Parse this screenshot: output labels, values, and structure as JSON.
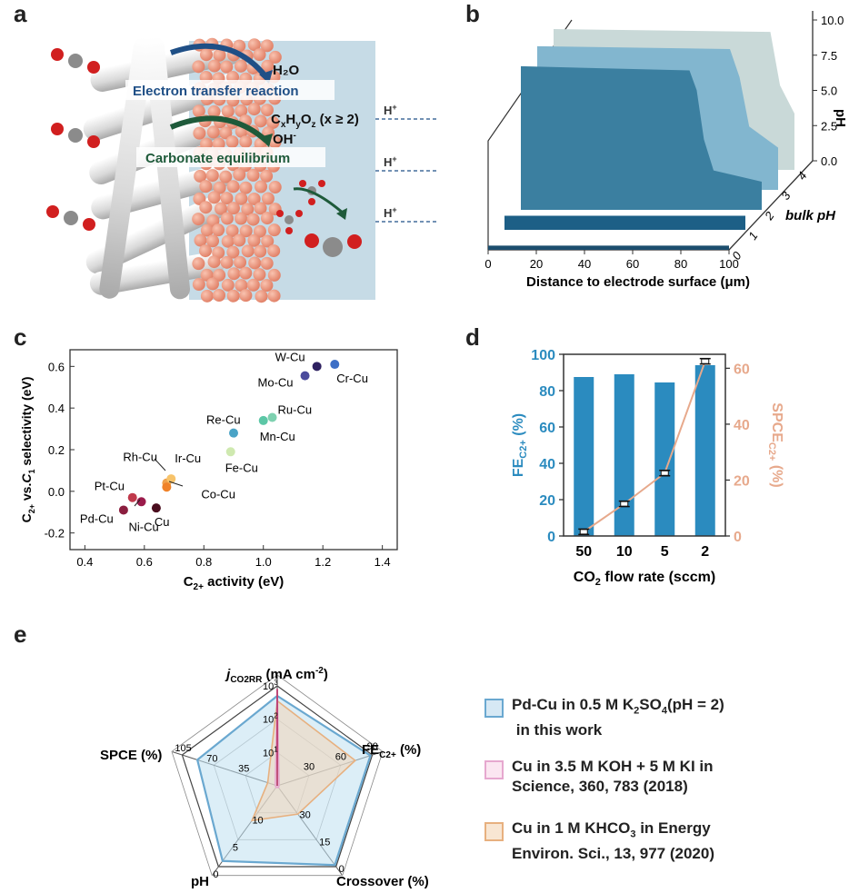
{
  "panels": {
    "a": "a",
    "b": "b",
    "c": "c",
    "d": "d",
    "e": "e"
  },
  "panel_a": {
    "h2o": "H₂O",
    "electron_transfer": "Electron transfer reaction",
    "product_prefix": "C",
    "product_x": "x",
    "product_h": "H",
    "product_y": "y",
    "product_o": "O",
    "product_z": "z",
    "product_suffix": " (x ≥ 2)",
    "oh": "OH",
    "oh_sup": "-",
    "carbonate": "Carbonate equilibrium",
    "proton": "H",
    "proton_sup": "+"
  },
  "chart_data": [
    {
      "id": "b",
      "type": "area",
      "title": "",
      "xlabel": "Distance to electrode surface (μm)",
      "x_ticks": [
        "0",
        "20",
        "40",
        "60",
        "80",
        "100"
      ],
      "zlabel": "pH",
      "z_ticks": [
        "0.0",
        "2.5",
        "5.0",
        "7.5",
        "10.0"
      ],
      "ylabel": "bulk pH",
      "y_ticks": [
        "0",
        "1",
        "2",
        "3",
        "4"
      ],
      "xlim": [
        0,
        100
      ],
      "zlim": [
        0,
        10
      ],
      "series": [
        {
          "bulk": 0,
          "x": [
            0,
            100
          ],
          "ph": [
            0.3,
            0.3
          ],
          "color": "#1c4e6e"
        },
        {
          "bulk": 1,
          "x": [
            0,
            100
          ],
          "ph": [
            1.0,
            1.0
          ],
          "color": "#1d5f86"
        },
        {
          "bulk": 2,
          "x": [
            0,
            70,
            73,
            76,
            80,
            100
          ],
          "ph": [
            10.2,
            9.9,
            8.5,
            5.0,
            2.8,
            2.0
          ],
          "color": "#3b7fa0"
        },
        {
          "bulk": 3,
          "x": [
            0,
            80,
            84,
            88,
            100
          ],
          "ph": [
            10.2,
            10.0,
            8.0,
            4.5,
            3.0
          ],
          "color": "#82b6cf"
        },
        {
          "bulk": 4,
          "x": [
            0,
            90,
            94,
            100
          ],
          "ph": [
            10.0,
            9.8,
            6.0,
            4.0
          ],
          "color": "#c9d9d8"
        }
      ]
    },
    {
      "id": "c",
      "type": "scatter",
      "title": "",
      "xlabel": "C2+ activity (eV)",
      "ylabel": "C2+ vs.C1 selectivity (eV)",
      "xlim": [
        0.35,
        1.45
      ],
      "ylim": [
        -0.28,
        0.68
      ],
      "x_ticks": [
        "0.4",
        "0.6",
        "0.8",
        "1.0",
        "1.2",
        "1.4"
      ],
      "y_ticks": [
        "-0.2",
        "0.0",
        "0.2",
        "0.4",
        "0.6"
      ],
      "points": [
        {
          "label": "Pd-Cu",
          "x": 0.53,
          "y": -0.09,
          "color": "#8b1e3f"
        },
        {
          "label": "Pt-Cu",
          "x": 0.56,
          "y": -0.03,
          "color": "#c0394b"
        },
        {
          "label": "Ni-Cu",
          "x": 0.59,
          "y": -0.05,
          "color": "#9b1b4b"
        },
        {
          "label": "Cu",
          "x": 0.64,
          "y": -0.08,
          "color": "#4a0d1e"
        },
        {
          "label": "Rh-Cu",
          "x": 0.675,
          "y": 0.04,
          "color": "#f0a14a"
        },
        {
          "label": "Ir-Cu",
          "x": 0.69,
          "y": 0.06,
          "color": "#f7c36a"
        },
        {
          "label": "Co-Cu",
          "x": 0.675,
          "y": 0.02,
          "color": "#f08228"
        },
        {
          "label": "Fe-Cu",
          "x": 0.89,
          "y": 0.19,
          "color": "#cfe9b0"
        },
        {
          "label": "Re-Cu",
          "x": 0.9,
          "y": 0.28,
          "color": "#4aa3c6"
        },
        {
          "label": "Mn-Cu",
          "x": 1.0,
          "y": 0.34,
          "color": "#5cc7a6"
        },
        {
          "label": "Ru-Cu",
          "x": 1.03,
          "y": 0.355,
          "color": "#7ed1b0"
        },
        {
          "label": "Mo-Cu",
          "x": 1.14,
          "y": 0.555,
          "color": "#4b4b9c"
        },
        {
          "label": "W-Cu",
          "x": 1.18,
          "y": 0.6,
          "color": "#2e2160"
        },
        {
          "label": "Cr-Cu",
          "x": 1.24,
          "y": 0.61,
          "color": "#3d6fc6"
        }
      ]
    },
    {
      "id": "d",
      "type": "bar",
      "title": "",
      "xlabel": "CO2 flow rate (sccm)",
      "ylabel": "FE C2+ (%)",
      "ylabel_right": "SPCE C2+ (%)",
      "categories": [
        "50",
        "10",
        "5",
        "2"
      ],
      "ylim": [
        0,
        100
      ],
      "ylim_right": [
        0,
        65
      ],
      "y_ticks": [
        "0",
        "20",
        "40",
        "60",
        "80",
        "100"
      ],
      "y_ticks_right": [
        "0",
        "20",
        "40",
        "60"
      ],
      "series": [
        {
          "name": "FE C2+",
          "axis": "left",
          "values": [
            87.5,
            89,
            84.5,
            94
          ],
          "color": "#2b8bbf"
        },
        {
          "name": "SPCE C2+",
          "axis": "right",
          "values": [
            1.5,
            11.5,
            22.5,
            62.5
          ],
          "color": "#e7a98c"
        }
      ]
    },
    {
      "id": "e",
      "type": "radar",
      "title": "",
      "axes": [
        {
          "label": "j",
          "sub": "CO2RR",
          "unit": " (mA cm",
          "sup": "-2",
          "close": ")",
          "ticks": [
            "10",
            "10",
            "10"
          ],
          "tick_sup": [
            "1",
            "2",
            "3"
          ]
        },
        {
          "label": "FE",
          "sub": "C2+",
          "unit": " (%)",
          "ticks": [
            "30",
            "60",
            "90"
          ]
        },
        {
          "label": "Crossover (%)",
          "ticks": [
            "30",
            "15",
            "0"
          ]
        },
        {
          "label": "pH",
          "ticks": [
            "10",
            "5",
            "0"
          ]
        },
        {
          "label": "SPCE (%)",
          "ticks": [
            "35",
            "70",
            "105"
          ]
        }
      ],
      "series": [
        {
          "name": "Pd-Cu in 0.5 M K2SO4(pH = 2) in this work",
          "values": [
            0.9,
            0.98,
            0.98,
            0.93,
            0.84
          ],
          "color": "#6aa8d0"
        },
        {
          "name": "Cu in 3.5 M KOH + 5 M KI in Science, 360, 783 (2018)",
          "values": [
            0.97,
            0.02,
            0.02,
            0.02,
            0.02
          ],
          "color": "#e6a8cf"
        },
        {
          "name": "Cu in 1 M KHCO3 in Energy Environ. Sci., 13, 977 (2020)",
          "values": [
            0.85,
            0.82,
            0.35,
            0.43,
            0.1
          ],
          "color": "#e7b07f"
        }
      ],
      "legend": [
        {
          "line1": "Pd-Cu in 0.5 M K",
          "sub1": "2",
          "line1b": "SO",
          "sub1b": "4",
          "line1c": "(pH = 2)",
          "line2": " in this work"
        },
        {
          "line1": "Cu in 3.5 M KOH + 5 M KI in",
          "line2": "Science, 360, 783 (2018)"
        },
        {
          "line1": "Cu in 1 M KHCO",
          "sub1": "3",
          "line1b": " in Energy",
          "line2": "Environ. Sci., 13, 977 (2020)"
        }
      ]
    }
  ]
}
